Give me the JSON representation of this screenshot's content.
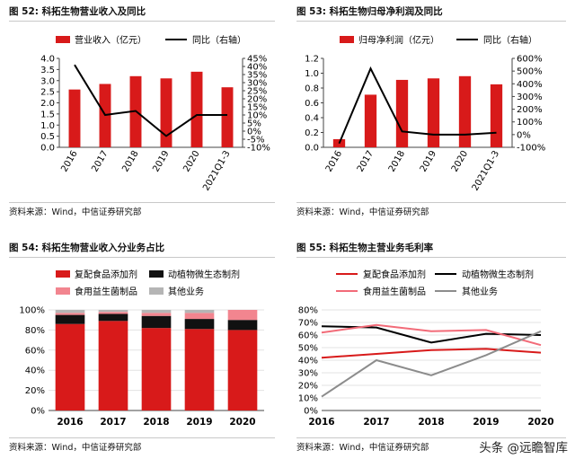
{
  "chart_data": [
    {
      "type": "bar",
      "figure_label": "图 52:",
      "title": "科拓生物营业收入及同比",
      "categories": [
        "2016",
        "2017",
        "2018",
        "2019",
        "2020",
        "2021Q1-3"
      ],
      "series": [
        {
          "name": "营业收入（亿元）",
          "kind": "bar",
          "axis": "left",
          "color": "#d81a1a",
          "values": [
            2.6,
            2.85,
            3.2,
            3.1,
            3.4,
            2.7
          ]
        },
        {
          "name": "同比（右轴）",
          "kind": "line",
          "axis": "right",
          "color": "#000000",
          "values": [
            41,
            10,
            12.5,
            -3,
            10,
            10
          ]
        }
      ],
      "ylim": [
        0,
        4.0
      ],
      "yticks": [
        "0.0",
        "0.5",
        "1.0",
        "1.5",
        "2.0",
        "2.5",
        "3.0",
        "3.5",
        "4.0"
      ],
      "y2lim": [
        -10,
        45
      ],
      "y2ticks": [
        "-10%",
        "-5%",
        "0%",
        "5%",
        "10%",
        "15%",
        "20%",
        "25%",
        "30%",
        "35%",
        "40%",
        "45%"
      ],
      "source": "资料来源：Wind，中信证券研究部"
    },
    {
      "type": "bar",
      "figure_label": "图 53:",
      "title": "科拓生物归母净利润及同比",
      "categories": [
        "2016",
        "2017",
        "2018",
        "2019",
        "2020",
        "2021Q1-3"
      ],
      "series": [
        {
          "name": "归母净利润（亿元）",
          "kind": "bar",
          "axis": "left",
          "color": "#d81a1a",
          "values": [
            0.11,
            0.71,
            0.91,
            0.93,
            0.96,
            0.85
          ]
        },
        {
          "name": "同比（右轴）",
          "kind": "line",
          "axis": "right",
          "color": "#000000",
          "values": [
            -70,
            520,
            25,
            0,
            0,
            15
          ]
        }
      ],
      "ylim": [
        0,
        1.2
      ],
      "yticks": [
        "0.0",
        "0.2",
        "0.4",
        "0.6",
        "0.8",
        "1.0",
        "1.2"
      ],
      "y2lim": [
        -100,
        600
      ],
      "y2ticks": [
        "-100%",
        "0%",
        "100%",
        "200%",
        "300%",
        "400%",
        "500%",
        "600%"
      ],
      "source": "资料来源：Wind，中信证券研究部"
    },
    {
      "type": "bar",
      "stacked": true,
      "figure_label": "图 54:",
      "title": "科拓生物营业收入分业务占比",
      "categories": [
        "2016",
        "2017",
        "2018",
        "2019",
        "2020"
      ],
      "series": [
        {
          "name": "复配食品添加剂",
          "color": "#d81a1a",
          "values": [
            86,
            89,
            82,
            81,
            80
          ]
        },
        {
          "name": "动植物微生态制剂",
          "color": "#111111",
          "values": [
            9,
            7,
            12,
            10,
            10
          ]
        },
        {
          "name": "食用益生菌制品",
          "color": "#f2858f",
          "values": [
            2,
            2,
            3,
            6,
            10
          ]
        },
        {
          "name": "其他业务",
          "color": "#b5b5b5",
          "values": [
            3,
            2,
            3,
            3,
            0
          ]
        }
      ],
      "ylim": [
        0,
        100
      ],
      "yticks": [
        "0%",
        "20%",
        "40%",
        "60%",
        "80%",
        "100%"
      ],
      "source": "资料来源：Wind，中信证券研究部"
    },
    {
      "type": "line",
      "figure_label": "图 55:",
      "title": "科拓生物主营业务毛利率",
      "categories": [
        "2016",
        "2017",
        "2018",
        "2019",
        "2020"
      ],
      "series": [
        {
          "name": "复配食品添加剂",
          "color": "#d81a1a",
          "values": [
            42,
            45,
            48,
            49,
            46
          ]
        },
        {
          "name": "动植物微生态制剂",
          "color": "#000000",
          "values": [
            67,
            66,
            54,
            61,
            60
          ]
        },
        {
          "name": "食用益生菌制品",
          "color": "#f26b78",
          "values": [
            62,
            68,
            63,
            64,
            52
          ]
        },
        {
          "name": "其他业务",
          "color": "#8c8c8c",
          "values": [
            11,
            40,
            28,
            44,
            63
          ]
        }
      ],
      "ylim": [
        0,
        80
      ],
      "yticks": [
        "0%",
        "10%",
        "20%",
        "30%",
        "40%",
        "50%",
        "60%",
        "70%",
        "80%"
      ],
      "source": "资料来源：Wind，中信证券研究部"
    }
  ],
  "watermark": "头条 @远瞻智库"
}
